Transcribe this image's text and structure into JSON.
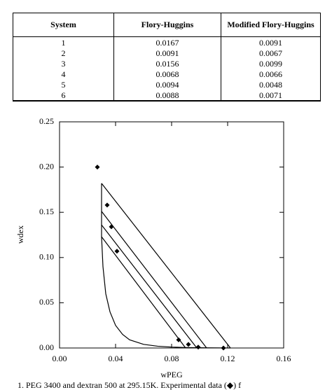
{
  "table": {
    "header": [
      "System",
      "Flory-Huggins",
      "Modified Flory-Huggins"
    ],
    "rows": [
      [
        "1",
        "0.0167",
        "0.0091"
      ],
      [
        "2",
        "0.0091",
        "0.0067"
      ],
      [
        "3",
        "0.0156",
        "0.0099"
      ],
      [
        "4",
        "0.0068",
        "0.0066"
      ],
      [
        "5",
        "0.0094",
        "0.0048"
      ],
      [
        "6",
        "0.0088",
        "0.0071"
      ]
    ]
  },
  "chart_data": {
    "type": "scatter",
    "x_label": "wPEG",
    "y_label": "wdex",
    "xlim": [
      0,
      0.16
    ],
    "ylim": [
      0,
      0.25
    ],
    "xticks": [
      {
        "value": 0,
        "label": "0.00"
      },
      0.04,
      0.08,
      0.12,
      0.16
    ],
    "yticks": [
      {
        "value": 0,
        "label": "0.00"
      },
      0.05,
      {
        "value": 0.1,
        "label": "0.10"
      },
      0.15,
      {
        "value": 0.2,
        "label": "0.20"
      },
      0.25
    ],
    "color": "#000000",
    "points": {
      "x": [
        0.027,
        0.034,
        0.037,
        0.041,
        0.085,
        0.092,
        0.099,
        0.117
      ],
      "y": [
        0.2,
        0.158,
        0.134,
        0.107,
        0.009,
        0.004,
        0.001,
        0.0
      ]
    },
    "curves": [
      {
        "x": [
          0.03,
          0.122
        ],
        "y": [
          0.182,
          0
        ]
      },
      {
        "x": [
          0.03,
          0.105
        ],
        "y": [
          0.151,
          0
        ]
      },
      {
        "x": [
          0.03,
          0.098
        ],
        "y": [
          0.136,
          0
        ]
      },
      {
        "x": [
          0.03,
          0.09
        ],
        "y": [
          0.123,
          0
        ]
      },
      {
        "x": [
          0.03,
          0.03,
          0.03,
          0.03,
          0.031,
          0.033,
          0.036,
          0.04,
          0.045,
          0.05,
          0.06,
          0.07,
          0.08,
          0.09,
          0.105,
          0.122
        ],
        "y": [
          0.182,
          0.151,
          0.136,
          0.123,
          0.09,
          0.06,
          0.04,
          0.025,
          0.015,
          0.009,
          0.004,
          0.002,
          0.001,
          0.0005,
          0.0002,
          0
        ]
      }
    ],
    "caption": "1. PEG 3400 and dextran 500 at 295.15K. Experimental data (◆) f"
  }
}
